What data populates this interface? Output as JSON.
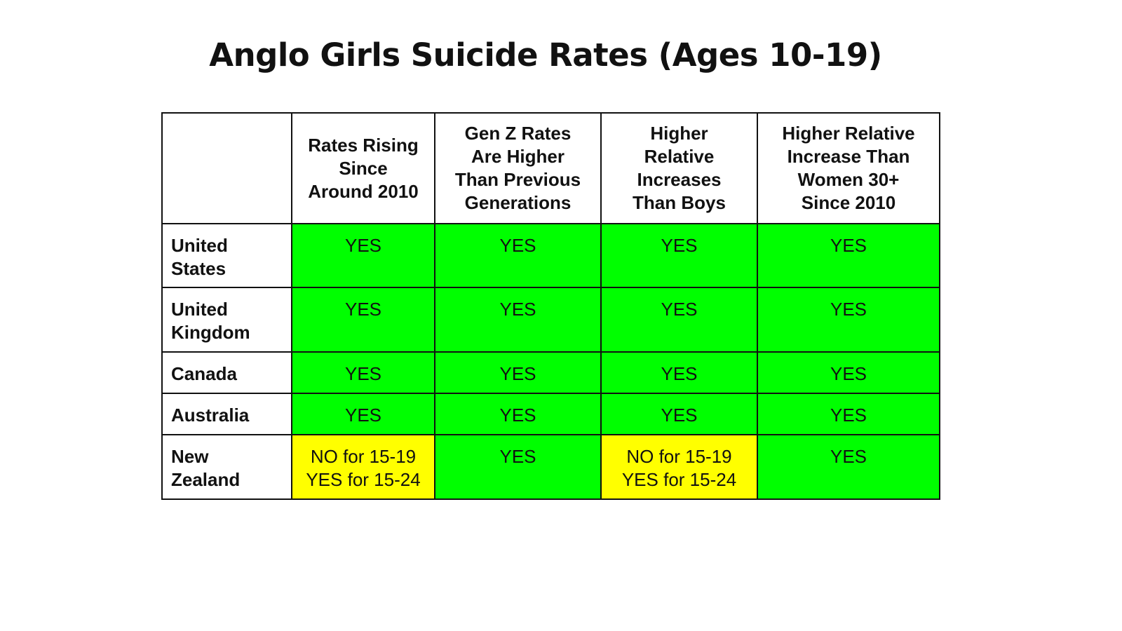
{
  "title": "Anglo Girls Suicide Rates (Ages 10-19)",
  "colors": {
    "yes": "#00ff00",
    "partial": "#ffff00"
  },
  "chart_data": {
    "type": "table",
    "title": "Anglo Girls Suicide Rates (Ages 10-19)",
    "columns": [
      [
        "Rates Rising",
        "Since",
        "Around 2010"
      ],
      [
        "Gen Z Rates",
        "Are Higher",
        "Than Previous",
        "Generations"
      ],
      [
        "Higher",
        "Relative",
        "Increases",
        "Than Boys"
      ],
      [
        "Higher Relative",
        "Increase Than",
        "Women 30+",
        "Since 2010"
      ]
    ],
    "rows": [
      {
        "country": [
          "United",
          "States"
        ],
        "status": [
          "yes",
          "yes",
          "yes",
          "yes"
        ],
        "cells": [
          [
            "YES"
          ],
          [
            "YES"
          ],
          [
            "YES"
          ],
          [
            "YES"
          ]
        ]
      },
      {
        "country": [
          "United",
          "Kingdom"
        ],
        "status": [
          "yes",
          "yes",
          "yes",
          "yes"
        ],
        "cells": [
          [
            "YES"
          ],
          [
            "YES"
          ],
          [
            "YES"
          ],
          [
            "YES"
          ]
        ]
      },
      {
        "country": [
          "Canada"
        ],
        "status": [
          "yes",
          "yes",
          "yes",
          "yes"
        ],
        "cells": [
          [
            "YES"
          ],
          [
            "YES"
          ],
          [
            "YES"
          ],
          [
            "YES"
          ]
        ]
      },
      {
        "country": [
          "Australia"
        ],
        "status": [
          "yes",
          "yes",
          "yes",
          "yes"
        ],
        "cells": [
          [
            "YES"
          ],
          [
            "YES"
          ],
          [
            "YES"
          ],
          [
            "YES"
          ]
        ]
      },
      {
        "country": [
          "New",
          "Zealand"
        ],
        "status": [
          "partial",
          "yes",
          "partial",
          "yes"
        ],
        "cells": [
          [
            "NO for 15-19",
            "YES for 15-24"
          ],
          [
            "YES"
          ],
          [
            "NO for 15-19",
            "YES for 15-24"
          ],
          [
            "YES"
          ]
        ]
      }
    ]
  }
}
